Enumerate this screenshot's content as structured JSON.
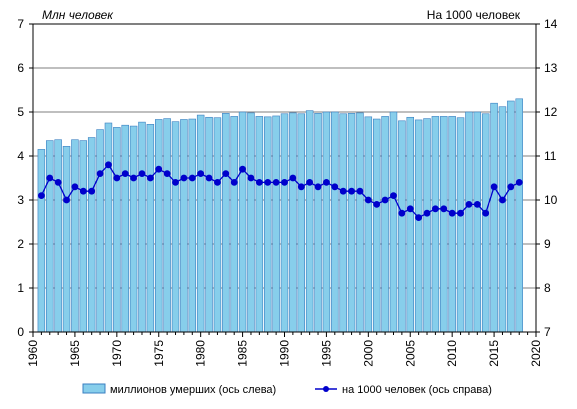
{
  "chart_data": {
    "type": "bar+line",
    "ylabel_left": "Млн  человек",
    "ylabel_right": "На 1000 человек",
    "yaxis_left": {
      "min": 0,
      "max": 7,
      "step": 1
    },
    "yaxis_right": {
      "min": 7,
      "max": 14,
      "step": 1
    },
    "xaxis": {
      "min": 1960,
      "max": 2020,
      "tick_step": 5,
      "minor_step": 1
    },
    "x_tick_labels": [
      "1960",
      "1965",
      "1970",
      "1975",
      "1980",
      "1985",
      "1990",
      "1995",
      "2000",
      "2005",
      "2010",
      "2015",
      "2020"
    ],
    "grid": {
      "horizontal": true,
      "vertical": false
    },
    "legend_position": "bottom",
    "x": [
      1961,
      1962,
      1963,
      1964,
      1965,
      1966,
      1967,
      1968,
      1969,
      1970,
      1971,
      1972,
      1973,
      1974,
      1975,
      1976,
      1977,
      1978,
      1979,
      1980,
      1981,
      1982,
      1983,
      1984,
      1985,
      1986,
      1987,
      1988,
      1989,
      1990,
      1991,
      1992,
      1993,
      1994,
      1995,
      1996,
      1997,
      1998,
      1999,
      2000,
      2001,
      2002,
      2003,
      2004,
      2005,
      2006,
      2007,
      2008,
      2009,
      2010,
      2011,
      2012,
      2013,
      2014,
      2015,
      2016,
      2017,
      2018
    ],
    "series": [
      {
        "name": "миллионов  умерших (ось слева)",
        "type": "bar",
        "axis": "left",
        "color": "#87ceeb",
        "values": [
          4.15,
          4.35,
          4.37,
          4.22,
          4.37,
          4.35,
          4.42,
          4.6,
          4.75,
          4.65,
          4.7,
          4.68,
          4.77,
          4.72,
          4.83,
          4.85,
          4.78,
          4.83,
          4.84,
          4.93,
          4.88,
          4.87,
          4.97,
          4.9,
          5.0,
          4.98,
          4.9,
          4.89,
          4.91,
          4.96,
          4.98,
          4.96,
          5.03,
          4.97,
          5.0,
          5.0,
          4.96,
          4.97,
          4.98,
          4.89,
          4.84,
          4.9,
          5.0,
          4.8,
          4.88,
          4.82,
          4.85,
          4.9,
          4.9,
          4.9,
          4.87,
          5.0,
          5.0,
          4.96,
          5.2,
          5.12,
          5.25,
          5.3
        ]
      },
      {
        "name": "на 1000 человек (ось справа)",
        "type": "line",
        "axis": "right",
        "color": "#0000cc",
        "values": [
          10.1,
          10.5,
          10.4,
          10.0,
          10.3,
          10.2,
          10.2,
          10.6,
          10.8,
          10.5,
          10.6,
          10.5,
          10.6,
          10.5,
          10.7,
          10.6,
          10.4,
          10.5,
          10.5,
          10.6,
          10.5,
          10.4,
          10.6,
          10.4,
          10.7,
          10.5,
          10.4,
          10.4,
          10.4,
          10.4,
          10.5,
          10.3,
          10.4,
          10.3,
          10.4,
          10.3,
          10.2,
          10.2,
          10.2,
          10.0,
          9.9,
          10.0,
          10.1,
          9.7,
          9.8,
          9.6,
          9.7,
          9.8,
          9.8,
          9.7,
          9.7,
          9.9,
          9.9,
          9.7,
          10.3,
          10.0,
          10.3,
          10.4
        ]
      }
    ]
  }
}
